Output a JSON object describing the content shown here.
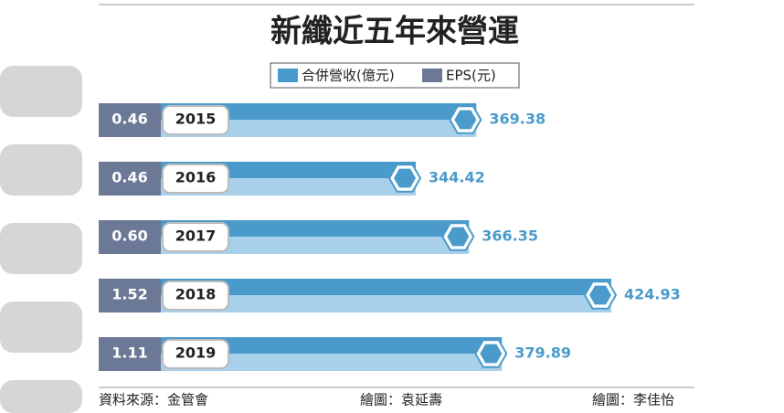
{
  "chart_data": {
    "type": "bar",
    "orientation": "horizontal",
    "title": "新纖近五年來營運",
    "categories": [
      "2015",
      "2016",
      "2017",
      "2018",
      "2019"
    ],
    "series": [
      {
        "name": "合併營收(億元)",
        "color": "#4a9bcb",
        "values": [
          369.38,
          344.42,
          366.35,
          424.93,
          379.89
        ]
      },
      {
        "name": "EPS(元)",
        "color": "#6b7896",
        "values": [
          0.46,
          0.46,
          0.6,
          1.52,
          1.11
        ],
        "value_labels": [
          "0.46",
          "0.46",
          "0.60",
          "1.52",
          "1.11"
        ]
      }
    ],
    "footer": {
      "source": "資料來源：金管會",
      "credit_1": "繪圖：袁延壽",
      "credit_2": "繪圖：李佳怡"
    }
  }
}
